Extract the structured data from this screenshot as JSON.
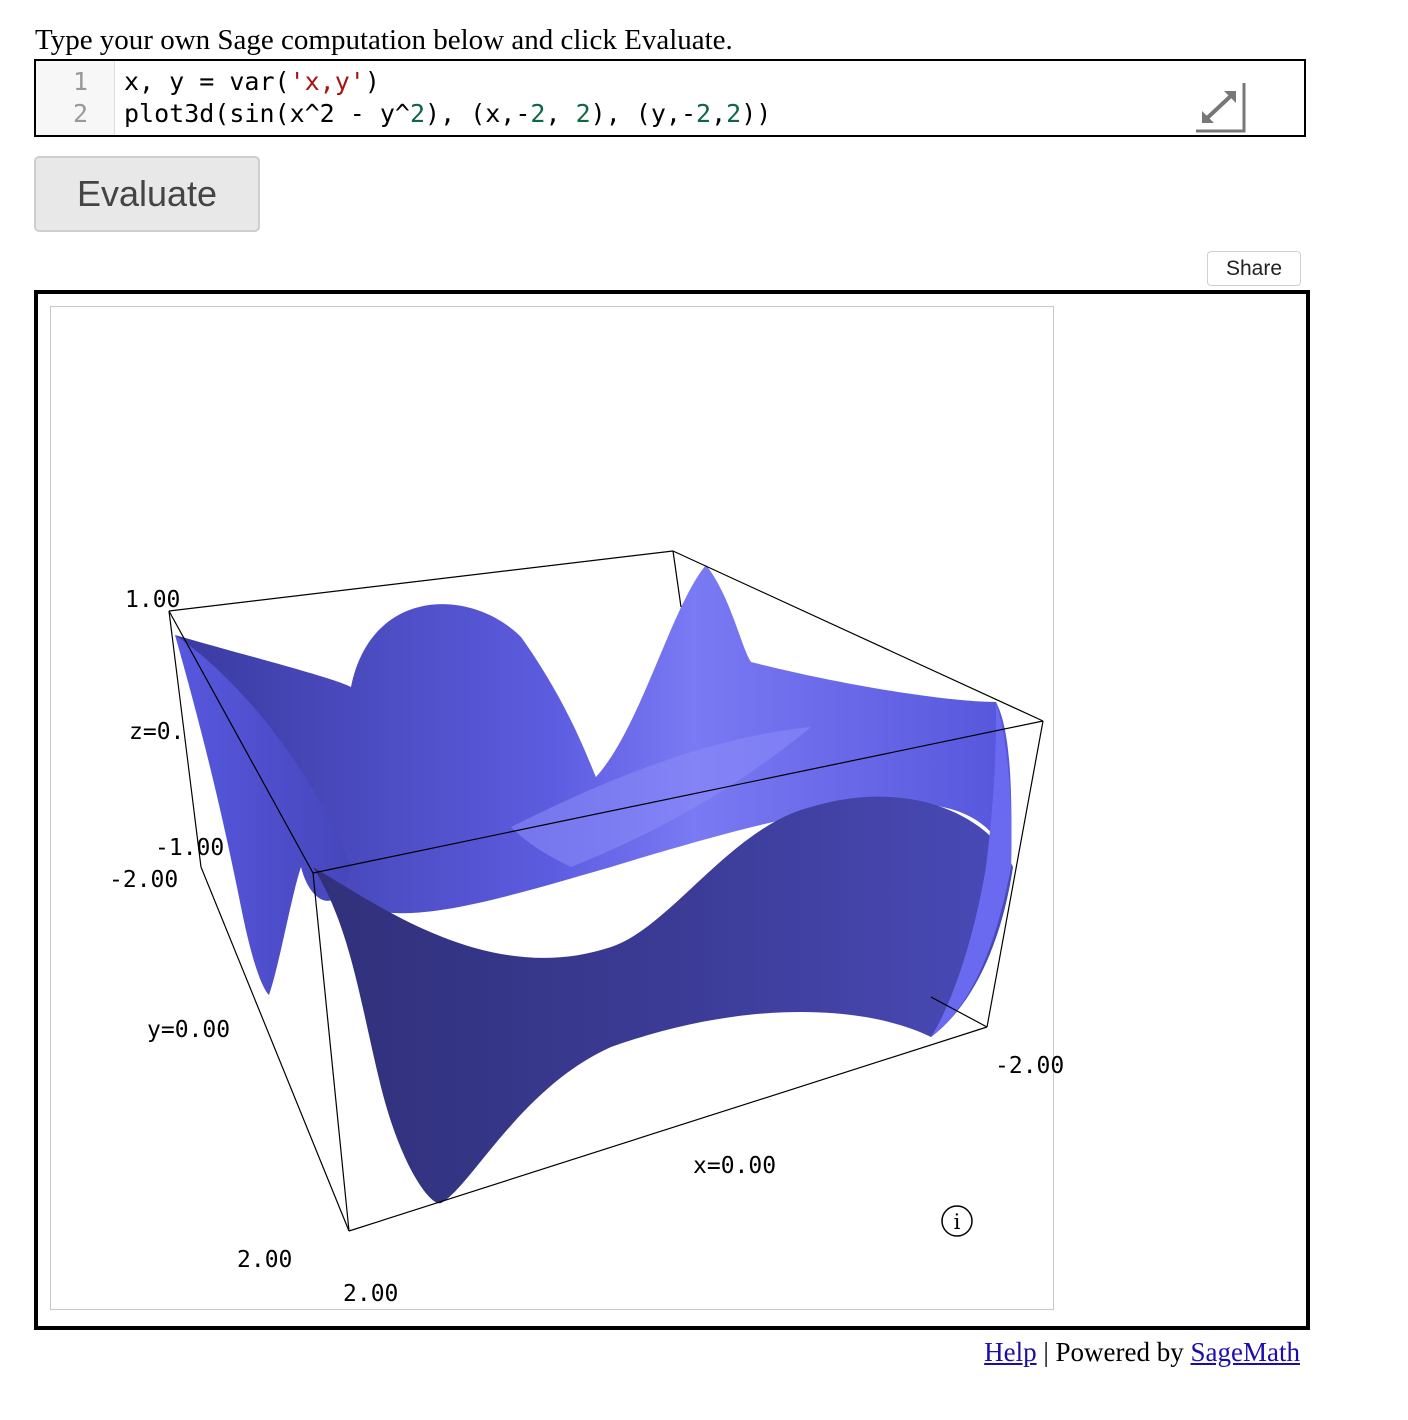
{
  "intro": "Type your own Sage computation below and click Evaluate.",
  "editor": {
    "line_numbers": [
      "1",
      "2"
    ],
    "line1": {
      "a": "x, y = var(",
      "str": "'x,y'",
      "b": ")"
    },
    "line2": {
      "p1": "plot3d(sin(x^2 - y^",
      "n1": "2",
      "p2": "), (x,-",
      "n2": "2",
      "p3": ", ",
      "n3": "2",
      "p4": "), (y,-",
      "n4": "2",
      "p5": ",",
      "n5": "2",
      "p6": "))"
    }
  },
  "evaluate_label": "Evaluate",
  "share_label": "Share",
  "plot": {
    "labels": {
      "z_top": "1.00",
      "z_mid": "z=0.",
      "z_bot": "-1.00",
      "y_neg": "-2.00",
      "y_mid": "y=0.00",
      "y_pos": "2.00",
      "x_neg": "-2.00",
      "x_mid": "x=0.00",
      "x_pos": "2.00"
    },
    "surface_color": "#6363e8",
    "info_icon": "i"
  },
  "footer": {
    "help": "Help",
    "sep": " | Powered by ",
    "sagemath": "SageMath"
  }
}
